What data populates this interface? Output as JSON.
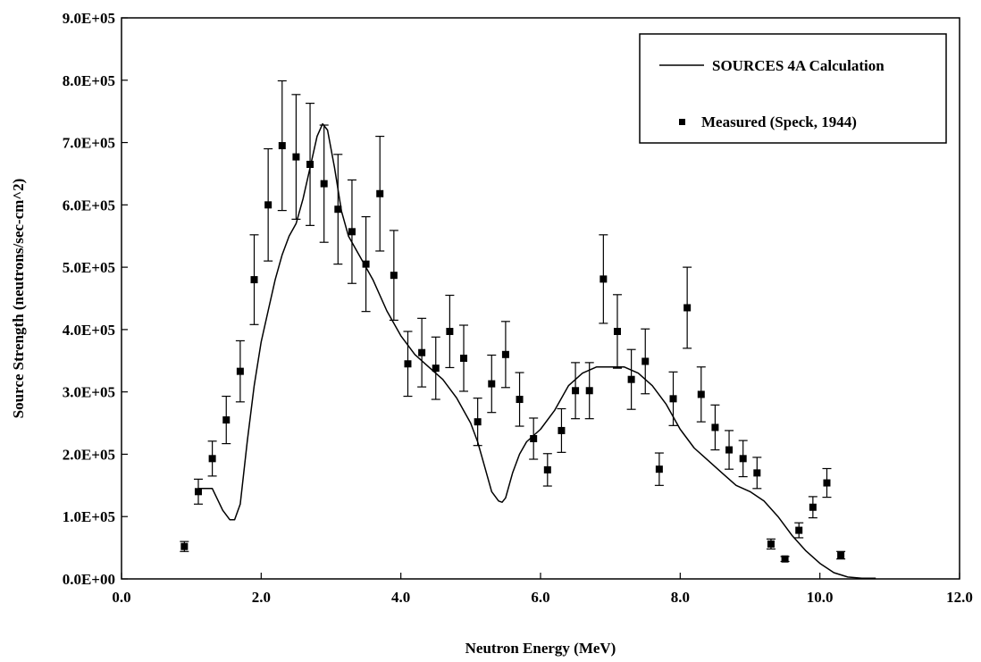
{
  "chart_data": {
    "type": "scatter",
    "title": "",
    "xlabel": "Neutron Energy (MeV)",
    "ylabel": "Source Strength (neutrons/sec-cm^2)",
    "xlim": [
      0,
      12
    ],
    "ylim": [
      0,
      900000
    ],
    "x_ticks": [
      0,
      2,
      4,
      6,
      8,
      10,
      12
    ],
    "x_tick_labels": [
      "0.0",
      "2.0",
      "4.0",
      "6.0",
      "8.0",
      "10.0",
      "12.0"
    ],
    "y_ticks": [
      0,
      100000,
      200000,
      300000,
      400000,
      500000,
      600000,
      700000,
      800000,
      900000
    ],
    "y_tick_labels": [
      "0.0E+00",
      "1.0E+05",
      "2.0E+05",
      "3.0E+05",
      "4.0E+05",
      "5.0E+05",
      "6.0E+05",
      "7.0E+05",
      "8.0E+05",
      "9.0E+05"
    ],
    "grid": false,
    "legend_position": "top-right",
    "series": [
      {
        "name": "SOURCES 4A Calculation",
        "kind": "line",
        "color": "#000000",
        "x": [
          1.1,
          1.3,
          1.45,
          1.55,
          1.62,
          1.7,
          1.8,
          1.9,
          2.0,
          2.1,
          2.2,
          2.3,
          2.4,
          2.5,
          2.6,
          2.7,
          2.8,
          2.88,
          2.95,
          3.05,
          3.15,
          3.25,
          3.4,
          3.6,
          3.8,
          4.0,
          4.2,
          4.4,
          4.6,
          4.8,
          5.0,
          5.1,
          5.2,
          5.3,
          5.4,
          5.45,
          5.5,
          5.6,
          5.7,
          5.8,
          6.0,
          6.2,
          6.4,
          6.6,
          6.8,
          7.0,
          7.2,
          7.4,
          7.6,
          7.8,
          8.0,
          8.2,
          8.4,
          8.6,
          8.8,
          9.0,
          9.2,
          9.4,
          9.6,
          9.8,
          10.0,
          10.2,
          10.4,
          10.6,
          10.8
        ],
        "y": [
          145000,
          145000,
          110000,
          95000,
          95000,
          120000,
          220000,
          310000,
          380000,
          430000,
          480000,
          520000,
          550000,
          570000,
          610000,
          660000,
          710000,
          730000,
          720000,
          660000,
          590000,
          550000,
          520000,
          480000,
          430000,
          390000,
          360000,
          340000,
          320000,
          290000,
          250000,
          220000,
          180000,
          140000,
          125000,
          123000,
          130000,
          170000,
          200000,
          220000,
          240000,
          270000,
          310000,
          330000,
          340000,
          340000,
          340000,
          330000,
          310000,
          280000,
          240000,
          210000,
          190000,
          170000,
          150000,
          140000,
          125000,
          100000,
          70000,
          45000,
          25000,
          10000,
          3000,
          1000,
          1000
        ]
      },
      {
        "name": "Measured (Speck, 1944)",
        "kind": "scatter",
        "color": "#000000",
        "x": [
          0.9,
          1.1,
          1.3,
          1.5,
          1.7,
          1.9,
          2.1,
          2.3,
          2.5,
          2.7,
          2.9,
          3.1,
          3.3,
          3.5,
          3.7,
          3.9,
          4.1,
          4.3,
          4.5,
          4.7,
          4.9,
          5.1,
          5.3,
          5.5,
          5.7,
          5.9,
          6.1,
          6.3,
          6.5,
          6.7,
          6.9,
          7.1,
          7.3,
          7.5,
          7.7,
          7.9,
          8.1,
          8.3,
          8.5,
          8.7,
          8.9,
          9.1,
          9.3,
          9.5,
          9.7,
          9.9,
          10.1,
          10.3
        ],
        "y": [
          52000,
          140000,
          193000,
          255000,
          333000,
          480000,
          600000,
          695000,
          677000,
          665000,
          634000,
          593000,
          557000,
          505000,
          618000,
          487000,
          345000,
          363000,
          338000,
          397000,
          354000,
          252000,
          313000,
          360000,
          288000,
          225000,
          175000,
          238000,
          302000,
          302000,
          481000,
          397000,
          320000,
          349000,
          176000,
          289000,
          435000,
          296000,
          243000,
          207000,
          193000,
          170000,
          56000,
          32000,
          78000,
          115000,
          154000,
          38000
        ],
        "error": [
          8000,
          20000,
          28000,
          38000,
          49000,
          72000,
          90000,
          104000,
          100000,
          98000,
          94000,
          88000,
          83000,
          76000,
          92000,
          72000,
          52000,
          55000,
          50000,
          58000,
          53000,
          38000,
          46000,
          53000,
          43000,
          33000,
          26000,
          35000,
          45000,
          45000,
          71000,
          59000,
          48000,
          52000,
          26000,
          43000,
          65000,
          44000,
          36000,
          31000,
          29000,
          25000,
          8000,
          4000,
          12000,
          17000,
          23000,
          6000
        ]
      }
    ]
  }
}
